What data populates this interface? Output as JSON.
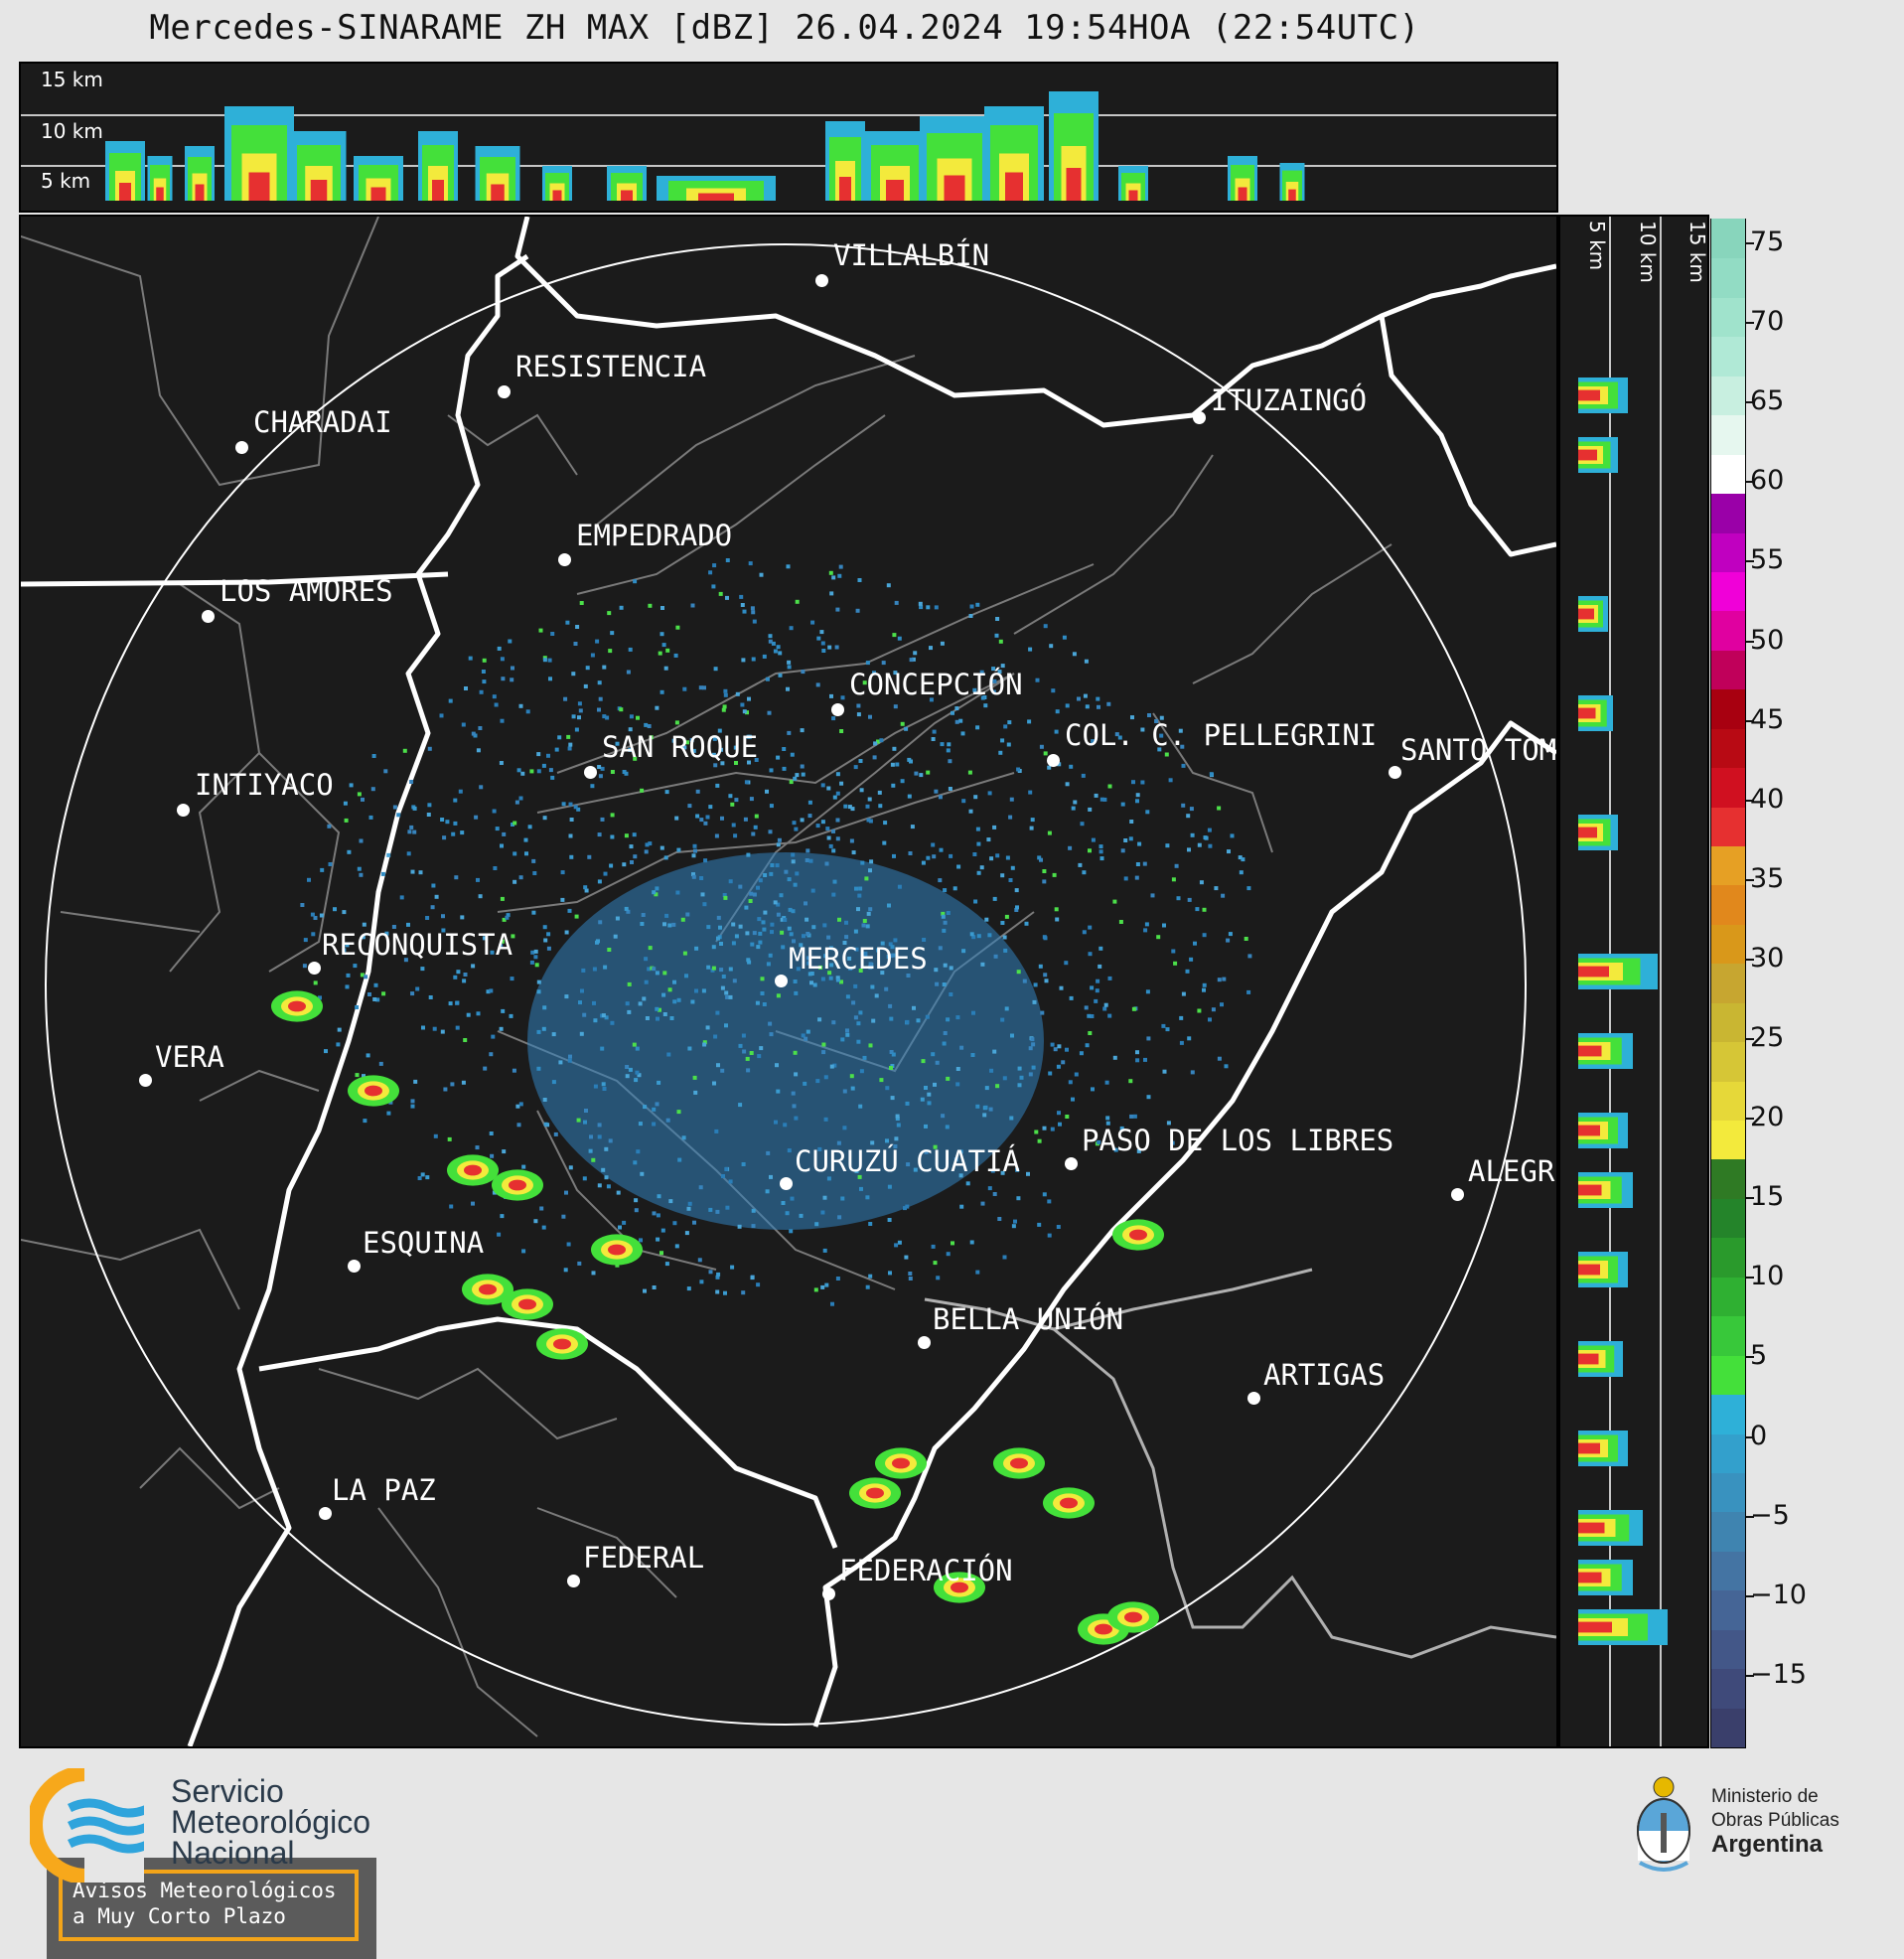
{
  "title": "Mercedes-SINARAME ZH MAX [dBZ] 26.04.2024 19:54HOA (22:54UTC)",
  "height_labels": [
    "15 km",
    "10 km",
    "5 km"
  ],
  "colorbar": {
    "ticks": [
      "75",
      "70",
      "65",
      "60",
      "55",
      "50",
      "45",
      "40",
      "35",
      "30",
      "25",
      "20",
      "15",
      "10",
      "5",
      "0",
      "−5",
      "−10",
      "−15"
    ],
    "colors": [
      "#3a3f6b",
      "#3f4a7a",
      "#435788",
      "#456596",
      "#4474a3",
      "#3f84b0",
      "#3992bf",
      "#33a0cc",
      "#2eb0d8",
      "#44e03a",
      "#38c83a",
      "#2fb032",
      "#2a9a2c",
      "#24842a",
      "#2f7a24",
      "#f3ea3c",
      "#e6d839",
      "#d6c636",
      "#c9b632",
      "#c7a630",
      "#d9981a",
      "#e1881c",
      "#e6a024",
      "#e63030",
      "#d01020",
      "#b80a14",
      "#a80010",
      "#c0005a",
      "#e000a0",
      "#f000d8",
      "#c000c0",
      "#9a00a8",
      "#ffffff",
      "#e6f7ef",
      "#c8efe0",
      "#b0e9d6",
      "#a0e3cc",
      "#92dcc4",
      "#88d5bc"
    ]
  },
  "cities": [
    {
      "name": "VILLALBÍN"
    },
    {
      "name": "RESISTENCIA"
    },
    {
      "name": "CHARADAI"
    },
    {
      "name": "ITUZAINGÓ"
    },
    {
      "name": "EMPEDRADO"
    },
    {
      "name": "LOS AMORES"
    },
    {
      "name": "CONCEPCIÓN"
    },
    {
      "name": "SAN ROQUE"
    },
    {
      "name": "COL. C. PELLEGRINI"
    },
    {
      "name": "SANTO TOM"
    },
    {
      "name": "INTIYACO"
    },
    {
      "name": "RECONQUISTA"
    },
    {
      "name": "MERCEDES"
    },
    {
      "name": "VERA"
    },
    {
      "name": "PASO DE LOS LIBRES"
    },
    {
      "name": "CURUZÚ CUATIÁ"
    },
    {
      "name": "ALEGR"
    },
    {
      "name": "ESQUINA"
    },
    {
      "name": "BELLA UNIÓN"
    },
    {
      "name": "ARTIGAS"
    },
    {
      "name": "LA PAZ"
    },
    {
      "name": "FEDERAL"
    },
    {
      "name": "FEDERACIÓN"
    }
  ],
  "warning": {
    "line1": "Avisos Meteorológicos",
    "line2": "a Muy Corto Plazo"
  },
  "smn": {
    "line1": "Servicio",
    "line2": "Meteorológico",
    "line3": "Nacional"
  },
  "ministry": {
    "line1": "Ministerio de",
    "line2": "Obras Públicas",
    "line3": "Argentina"
  }
}
